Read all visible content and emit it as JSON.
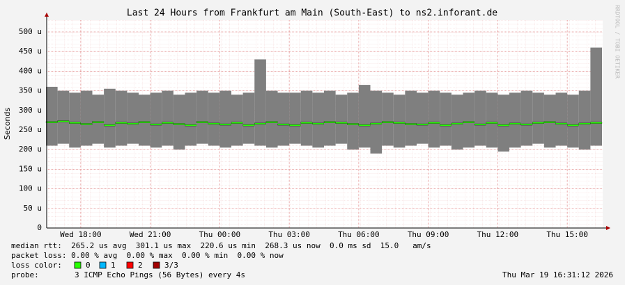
{
  "chart_data": {
    "type": "smoke",
    "title": "Last 24 Hours from Frankfurt am Main (South-East) to ns2.inforant.de",
    "y_label": "Seconds",
    "side_text": "RRDTOOL / TOBI OETIKER",
    "x": [
      16.75,
      17.25,
      17.75,
      18.25,
      18.75,
      19.25,
      19.75,
      20.25,
      20.75,
      21.25,
      21.75,
      22.25,
      22.75,
      23.25,
      23.75,
      24.25,
      24.75,
      25.25,
      25.75,
      26.25,
      26.75,
      27.25,
      27.75,
      28.25,
      28.75,
      29.25,
      29.75,
      30.25,
      30.75,
      31.25,
      31.75,
      32.25,
      32.75,
      33.25,
      33.75,
      34.25,
      34.75,
      35.25,
      35.75,
      36.25,
      36.75,
      37.25,
      37.75,
      38.25,
      38.75,
      39.25,
      39.75,
      40.25
    ],
    "series": [
      {
        "name": "max",
        "color": "#7f7f7f",
        "values": [
          360,
          350,
          345,
          350,
          340,
          355,
          350,
          345,
          340,
          345,
          350,
          340,
          345,
          350,
          345,
          350,
          340,
          345,
          430,
          350,
          345,
          345,
          350,
          345,
          350,
          340,
          345,
          365,
          350,
          345,
          340,
          350,
          345,
          350,
          345,
          340,
          345,
          350,
          345,
          340,
          345,
          350,
          345,
          340,
          345,
          340,
          350,
          460
        ]
      },
      {
        "name": "min",
        "color": "#7f7f7f",
        "values": [
          210,
          215,
          205,
          210,
          215,
          205,
          210,
          215,
          210,
          205,
          210,
          200,
          210,
          215,
          210,
          205,
          210,
          215,
          210,
          205,
          210,
          215,
          210,
          205,
          210,
          215,
          200,
          205,
          190,
          210,
          205,
          210,
          215,
          205,
          210,
          200,
          205,
          210,
          205,
          195,
          205,
          210,
          215,
          205,
          210,
          205,
          200,
          210
        ]
      },
      {
        "name": "median",
        "color": "#26ff00",
        "values": [
          270,
          272,
          268,
          265,
          270,
          262,
          268,
          266,
          270,
          264,
          268,
          265,
          262,
          270,
          266,
          264,
          268,
          262,
          266,
          270,
          264,
          262,
          268,
          266,
          270,
          268,
          265,
          262,
          266,
          270,
          268,
          265,
          264,
          268,
          262,
          266,
          270,
          264,
          268,
          262,
          266,
          264,
          268,
          270,
          266,
          262,
          266,
          268
        ]
      }
    ],
    "xlim": [
      16.53,
      40.53
    ],
    "xticks": [
      {
        "value": 18,
        "label": "Wed 18:00"
      },
      {
        "value": 21,
        "label": "Wed 21:00"
      },
      {
        "value": 24,
        "label": "Thu 00:00"
      },
      {
        "value": 27,
        "label": "Thu 03:00"
      },
      {
        "value": 30,
        "label": "Thu 06:00"
      },
      {
        "value": 33,
        "label": "Thu 09:00"
      },
      {
        "value": 36,
        "label": "Thu 12:00"
      },
      {
        "value": 39,
        "label": "Thu 15:00"
      }
    ],
    "ylim": [
      0,
      530
    ],
    "yticks": [
      0,
      {
        "value": 50,
        "label": "50 u"
      },
      {
        "value": 100,
        "label": "100 u"
      },
      {
        "value": 150,
        "label": "150 u"
      },
      {
        "value": 200,
        "label": "200 u"
      },
      {
        "value": 250,
        "label": "250 u"
      },
      {
        "value": 300,
        "label": "300 u"
      },
      {
        "value": 350,
        "label": "350 u"
      },
      {
        "value": 400,
        "label": "400 u"
      },
      {
        "value": 450,
        "label": "450 u"
      },
      {
        "value": 500,
        "label": "500 u"
      }
    ],
    "grid": true,
    "stats_lines": [
      "median rtt:  265.2 us avg  301.1 us max  220.6 us min  268.3 us now  0.0 ms sd  15.0   am/s",
      "packet loss: 0.00 % avg  0.00 % max  0.00 % min  0.00 % now"
    ],
    "loss_title": "loss color:",
    "loss_colors": [
      {
        "label": "0",
        "color": "#26ff00"
      },
      {
        "label": "1",
        "color": "#00b8ff"
      },
      {
        "label": "2",
        "color": "#ff0000"
      },
      {
        "label": "3/3",
        "color": "#a10000"
      }
    ],
    "probe_label": "probe:",
    "probe": "3 ICMP Echo Pings (56 Bytes) every 4s",
    "date": "Thu Mar 19 16:31:12 2026"
  }
}
